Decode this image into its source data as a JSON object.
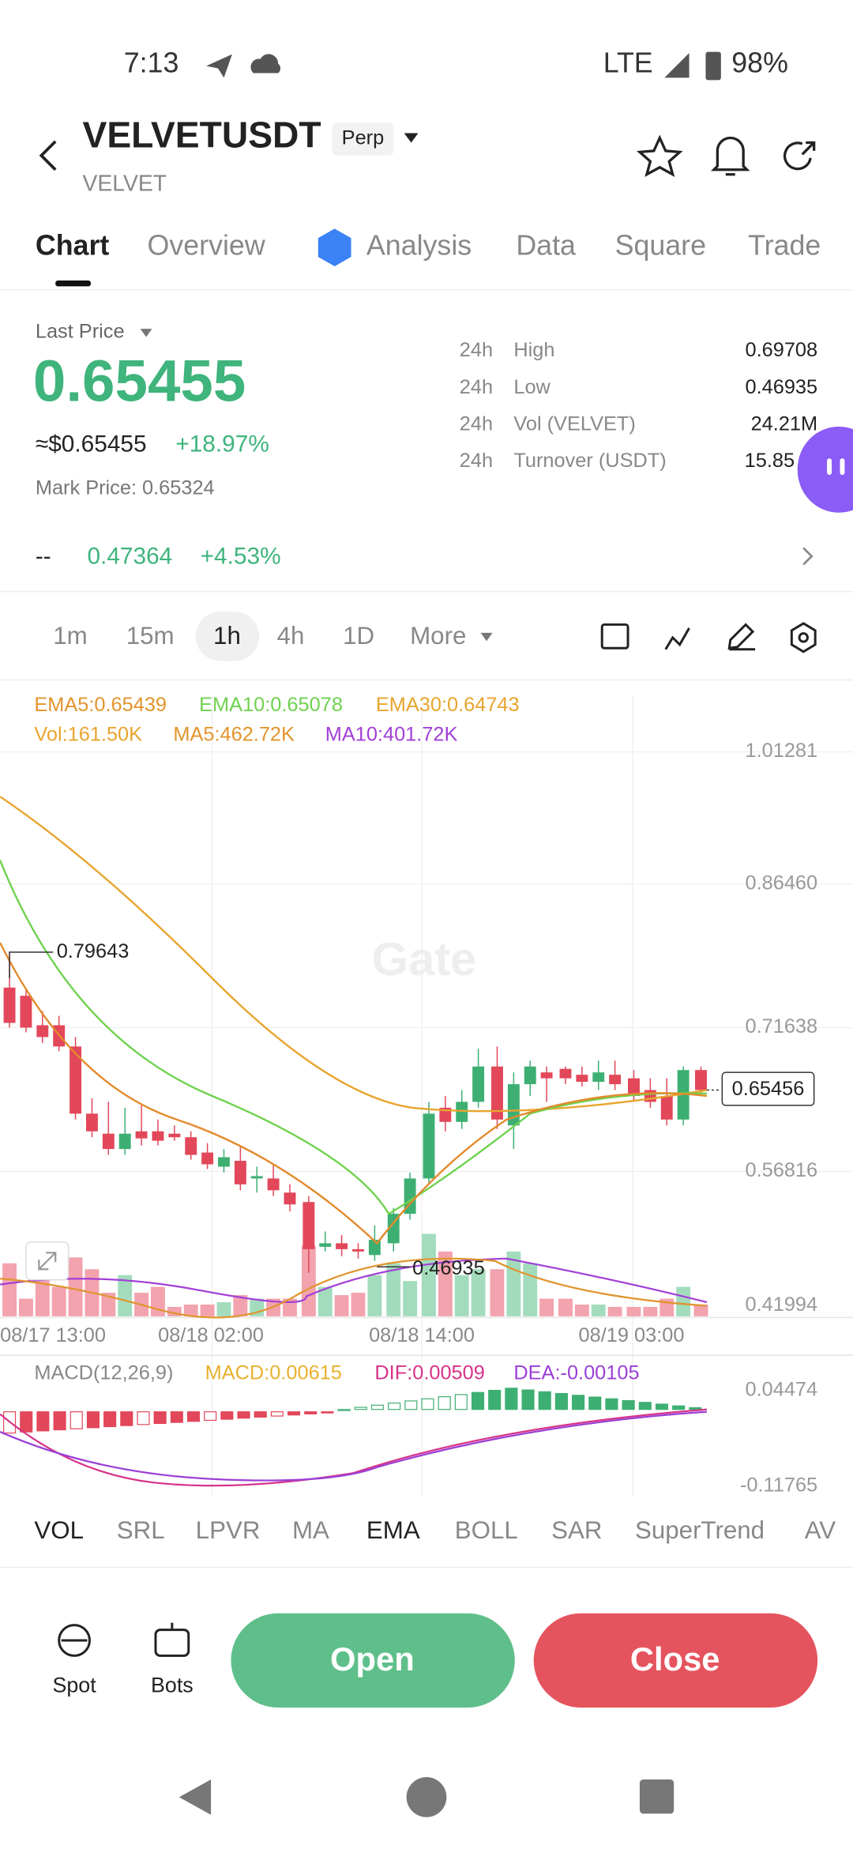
{
  "status": {
    "time": "7:13",
    "network": "LTE",
    "battery": "98%"
  },
  "header": {
    "symbol": "VELVETUSDT",
    "badge": "Perp",
    "base": "VELVET"
  },
  "tabs": [
    "Chart",
    "Overview",
    "Analysis",
    "Data",
    "Square",
    "Trade"
  ],
  "price": {
    "label": "Last Price",
    "last": "0.65455",
    "usd": "≈$0.65455",
    "change": "+18.97%",
    "mark": "Mark Price: 0.65324"
  },
  "stats": [
    {
      "period": "24h",
      "label": "High",
      "value": "0.69708"
    },
    {
      "period": "24h",
      "label": "Low",
      "value": "0.46935"
    },
    {
      "period": "24h",
      "label": "Vol (VELVET)",
      "value": "24.21M"
    },
    {
      "period": "24h",
      "label": "Turnover (USDT)",
      "value": "15.85"
    }
  ],
  "secondary": {
    "dash": "--",
    "value": "0.47364",
    "change": "+4.53%"
  },
  "intervals": [
    "1m",
    "15m",
    "1h",
    "4h",
    "1D",
    "More"
  ],
  "indicators": {
    "ema": [
      "EMA5:0.65439",
      "EMA10:0.65078",
      "EMA30:0.64743"
    ],
    "vol": [
      "Vol:161.50K",
      "MA5:462.72K",
      "MA10:401.72K"
    ]
  },
  "price_axis": [
    "1.01281",
    "0.86460",
    "0.71638",
    "0.56816",
    "0.41994"
  ],
  "markers": {
    "high": "0.79643",
    "low": "0.46935",
    "current": "0.65456"
  },
  "watermark": "Gate",
  "time_axis": [
    "08/17 13:00",
    "08/18 02:00",
    "08/18 14:00",
    "08/19 03:00"
  ],
  "macd": {
    "labels": [
      "MACD(12,26,9)",
      "MACD:0.00615",
      "DIF:0.00509",
      "DEA:-0.00105"
    ],
    "axis": [
      "0.04474",
      "-0.11765"
    ]
  },
  "indicator_tabs": [
    "VOL",
    "SRL",
    "LPVR",
    "MA",
    "EMA",
    "BOLL",
    "SAR",
    "SuperTrend",
    "AV"
  ],
  "actions": {
    "spot": "Spot",
    "bots": "Bots",
    "open": "Open",
    "close": "Close"
  }
}
